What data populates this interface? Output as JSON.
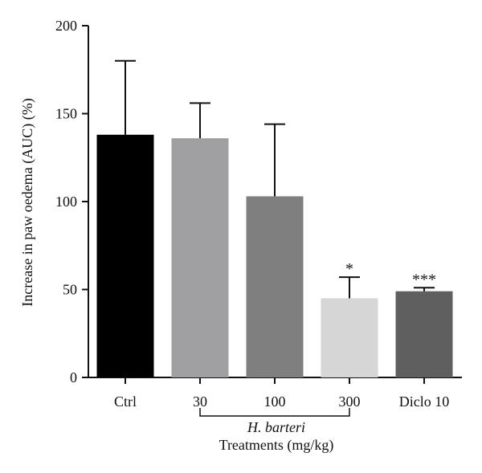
{
  "chart_data": {
    "type": "bar",
    "title": "",
    "ylabel": "Increase in paw oedema (AUC) (%)",
    "xlabel": "Treatments (mg/kg)",
    "group_label": "H. barteri",
    "ylim": [
      0,
      200
    ],
    "yticks": [
      0,
      50,
      100,
      150,
      200
    ],
    "categories": [
      "Ctrl",
      "30",
      "100",
      "300",
      "Diclo 10"
    ],
    "values": [
      138,
      136,
      103,
      45,
      49
    ],
    "errors": [
      42,
      20,
      41,
      12,
      2
    ],
    "significance": [
      "",
      "",
      "",
      "*",
      "***"
    ],
    "colors": [
      "#000000",
      "#a0a0a3",
      "#7f7f7f",
      "#d6d6d6",
      "#5f5f5f"
    ],
    "grouped_categories": [
      "30",
      "100",
      "300"
    ],
    "grid": false
  }
}
